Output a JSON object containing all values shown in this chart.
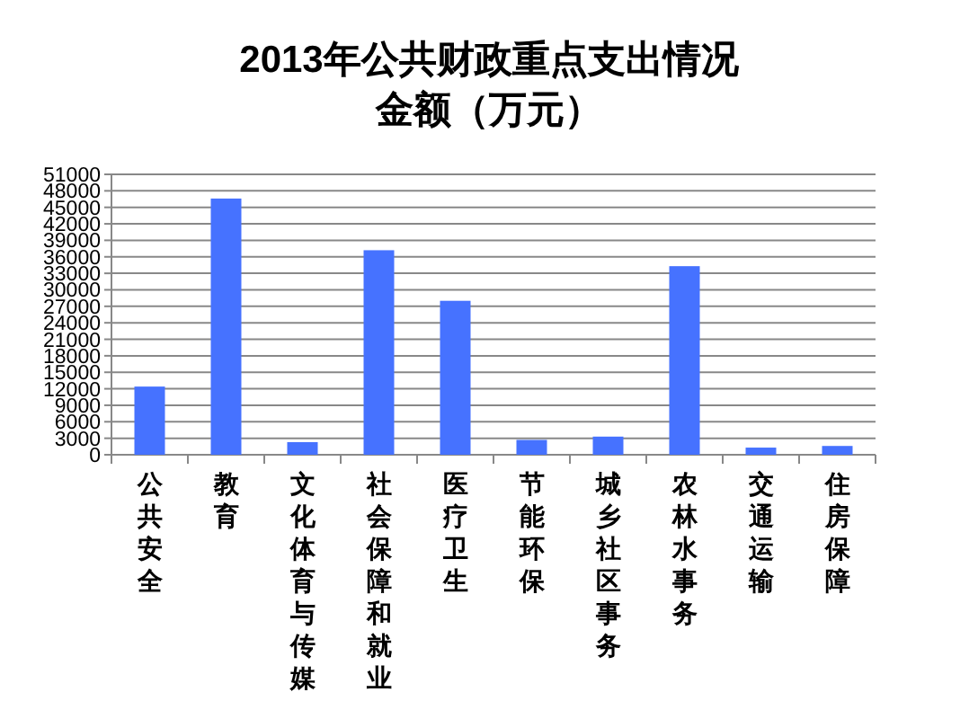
{
  "chart_data": {
    "type": "bar",
    "title": "2013年公共财政重点支出情况",
    "subtitle": "金额（万元）",
    "categories": [
      "公共安全",
      "教育",
      "文化体育与传媒",
      "社会保障和就业",
      "医疗卫生",
      "节能环保",
      "城乡社区事务",
      "农林水事务",
      "交通运输",
      "住房保障"
    ],
    "values": [
      12400,
      46600,
      2300,
      37200,
      28000,
      2700,
      3300,
      34300,
      1300,
      1600
    ],
    "color": "#4672ff",
    "ylim": [
      0,
      51000
    ],
    "yticks": [
      0,
      3000,
      6000,
      9000,
      12000,
      15000,
      18000,
      21000,
      24000,
      27000,
      30000,
      33000,
      36000,
      39000,
      42000,
      45000,
      48000,
      51000
    ],
    "grid": "y",
    "legend": false
  }
}
